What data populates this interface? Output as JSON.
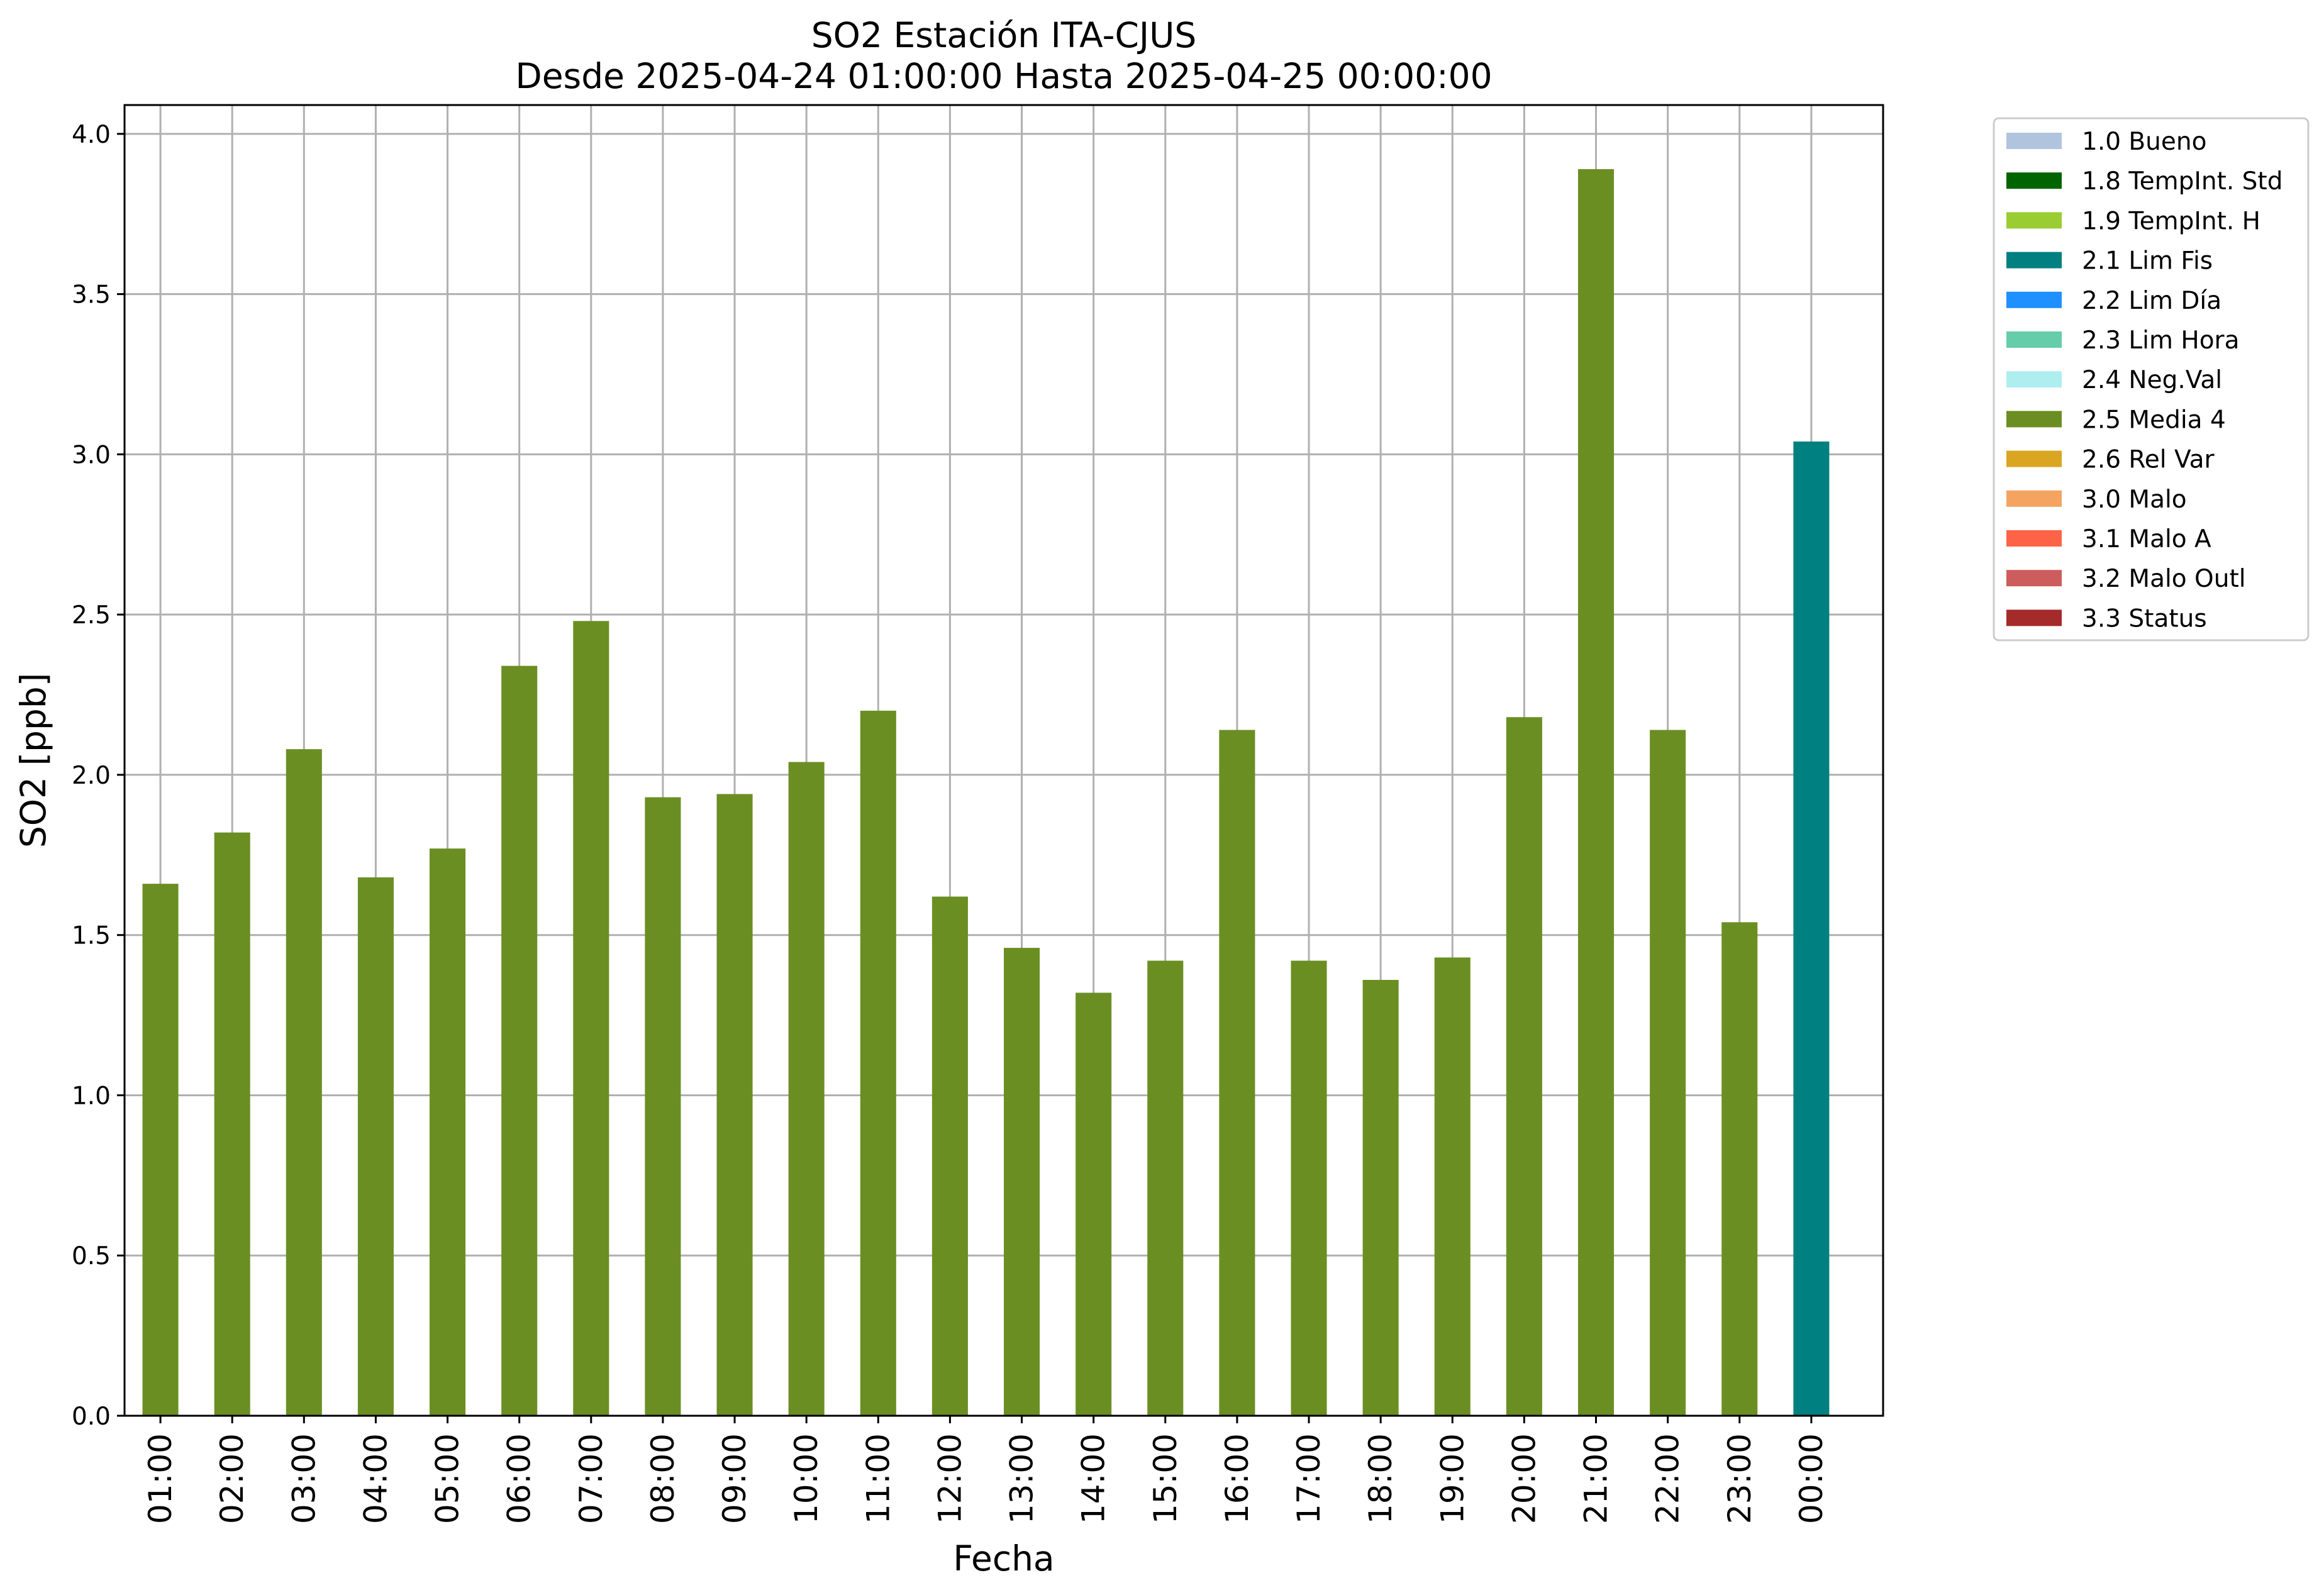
{
  "chart_data": {
    "type": "bar",
    "title": "SO2 Estación ITA-CJUS",
    "subtitle": "Desde 2025-04-24 01:00:00 Hasta 2025-04-25 00:00:00",
    "xlabel": "Fecha",
    "ylabel": "SO2 [ppb]",
    "ylim": [
      0,
      4.09
    ],
    "yticks": [
      "0.0",
      "0.5",
      "1.0",
      "1.5",
      "2.0",
      "2.5",
      "3.0",
      "3.5",
      "4.0"
    ],
    "grid": true,
    "legend_position": "outside-top-right",
    "categories": [
      "01:00",
      "02:00",
      "03:00",
      "04:00",
      "05:00",
      "06:00",
      "07:00",
      "08:00",
      "09:00",
      "10:00",
      "11:00",
      "12:00",
      "13:00",
      "14:00",
      "15:00",
      "16:00",
      "17:00",
      "18:00",
      "19:00",
      "20:00",
      "21:00",
      "22:00",
      "23:00",
      "00:00"
    ],
    "values": [
      1.66,
      1.82,
      2.08,
      1.68,
      1.77,
      2.34,
      2.48,
      1.93,
      1.94,
      2.04,
      2.2,
      1.62,
      1.46,
      1.32,
      1.42,
      2.14,
      1.42,
      1.36,
      1.43,
      2.18,
      3.89,
      2.14,
      1.54,
      3.04
    ],
    "bar_flags": [
      "2.5 Media 4",
      "2.5 Media 4",
      "2.5 Media 4",
      "2.5 Media 4",
      "2.5 Media 4",
      "2.5 Media 4",
      "2.5 Media 4",
      "2.5 Media 4",
      "2.5 Media 4",
      "2.5 Media 4",
      "2.5 Media 4",
      "2.5 Media 4",
      "2.5 Media 4",
      "2.5 Media 4",
      "2.5 Media 4",
      "2.5 Media 4",
      "2.5 Media 4",
      "2.5 Media 4",
      "2.5 Media 4",
      "2.5 Media 4",
      "2.5 Media 4",
      "2.5 Media 4",
      "2.5 Media 4",
      "2.1 Lim Fis"
    ],
    "legend": [
      {
        "label": "1.0 Bueno",
        "color": "#b0c4de"
      },
      {
        "label": "1.8 TempInt. Std",
        "color": "#006400"
      },
      {
        "label": "1.9 TempInt. H",
        "color": "#9acd32"
      },
      {
        "label": "2.1 Lim Fis",
        "color": "#008080"
      },
      {
        "label": "2.2 Lim Día",
        "color": "#1e90ff"
      },
      {
        "label": "2.3 Lim Hora",
        "color": "#66cdaa"
      },
      {
        "label": "2.4 Neg.Val",
        "color": "#afeeee"
      },
      {
        "label": "2.5 Media 4",
        "color": "#6b8e23"
      },
      {
        "label": "2.6 Rel Var",
        "color": "#daa520"
      },
      {
        "label": "3.0 Malo",
        "color": "#f4a460"
      },
      {
        "label": "3.1 Malo A",
        "color": "#ff6347"
      },
      {
        "label": "3.2 Malo Outl",
        "color": "#cd5c5c"
      },
      {
        "label": "3.3 Status",
        "color": "#a52a2a"
      }
    ]
  }
}
